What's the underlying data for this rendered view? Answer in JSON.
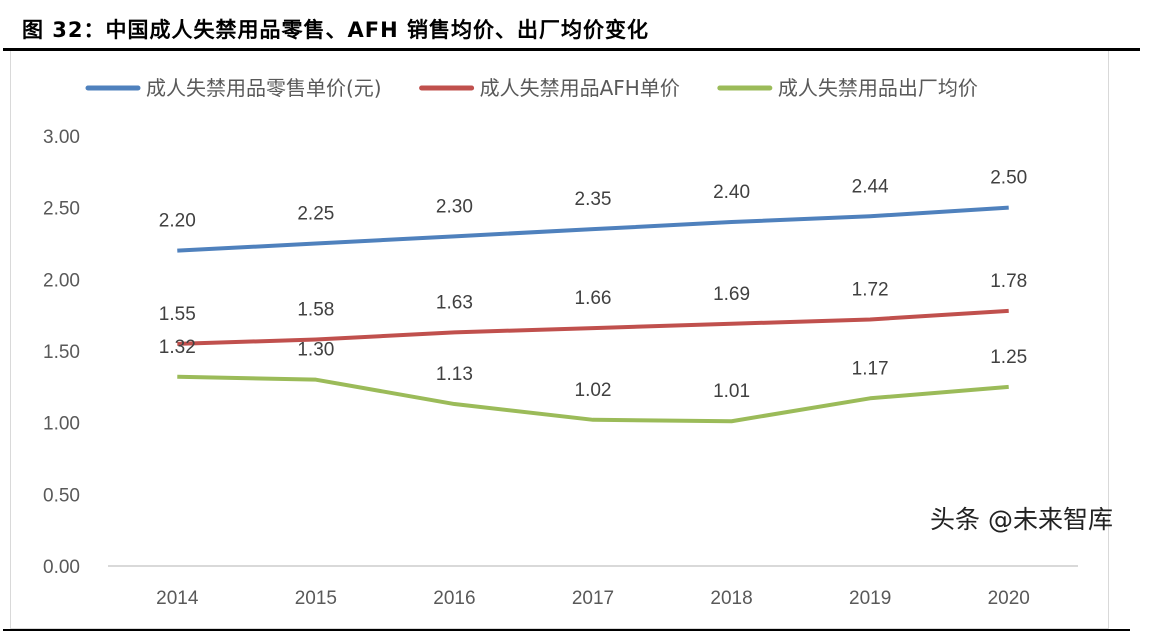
{
  "title": "图 32：中国成人失禁用品零售、AFH 销售均价、出厂均价变化",
  "watermark": "头条 @未来智库",
  "chart_data": {
    "type": "line",
    "categories": [
      "2014",
      "2015",
      "2016",
      "2017",
      "2018",
      "2019",
      "2020"
    ],
    "ylim": [
      0,
      3
    ],
    "yticks": [
      "0.00",
      "0.50",
      "1.00",
      "1.50",
      "2.00",
      "2.50",
      "3.00"
    ],
    "grid": "horizontal baseline only",
    "legend_position": "top",
    "series": [
      {
        "name": "成人失禁用品零售单价(元)",
        "color": "#4f81bd",
        "values": [
          2.2,
          2.25,
          2.3,
          2.35,
          2.4,
          2.44,
          2.5
        ],
        "labels": [
          "2.20",
          "2.25",
          "2.30",
          "2.35",
          "2.40",
          "2.44",
          "2.50"
        ]
      },
      {
        "name": "成人失禁用品AFH单价",
        "color": "#c0504d",
        "values": [
          1.55,
          1.58,
          1.63,
          1.66,
          1.69,
          1.72,
          1.78
        ],
        "labels": [
          "1.55",
          "1.58",
          "1.63",
          "1.66",
          "1.69",
          "1.72",
          "1.78"
        ]
      },
      {
        "name": "成人失禁用品出厂均价",
        "color": "#9bbb59",
        "values": [
          1.32,
          1.3,
          1.13,
          1.02,
          1.01,
          1.17,
          1.25
        ],
        "labels": [
          "1.32",
          "1.30",
          "1.13",
          "1.02",
          "1.01",
          "1.17",
          "1.25"
        ]
      }
    ]
  }
}
